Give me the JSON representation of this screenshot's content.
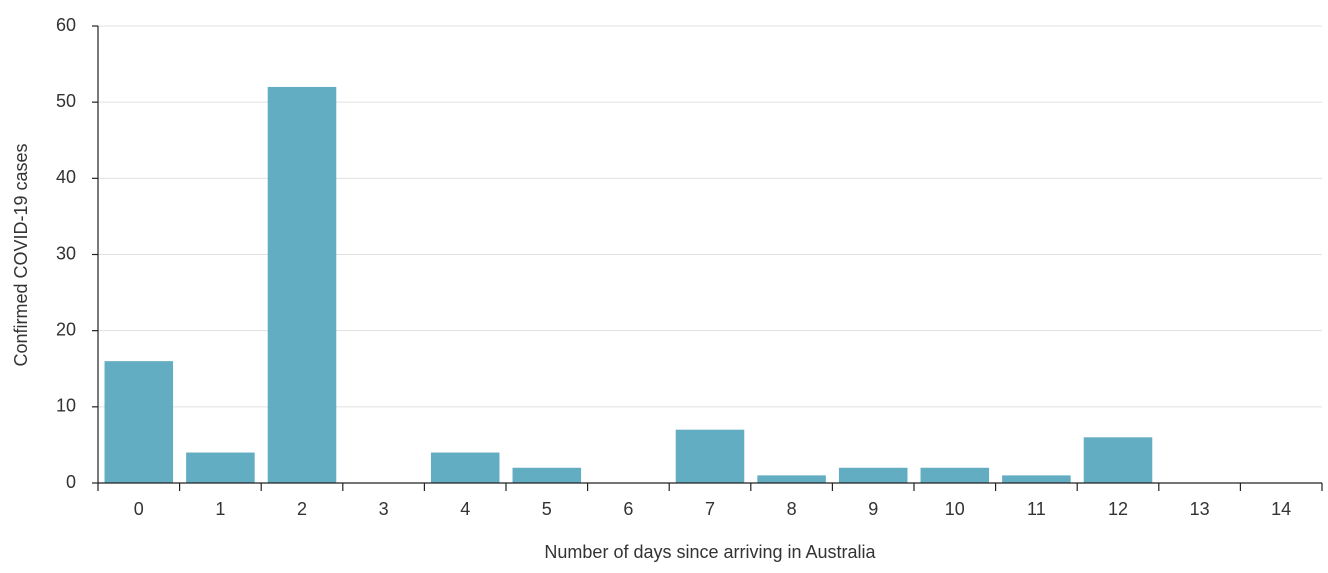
{
  "chart_data": {
    "type": "bar",
    "x_label": "Number of days since arriving in Australia",
    "y_label": "Confirmed COVID-19 cases",
    "categories": [
      "0",
      "1",
      "2",
      "3",
      "4",
      "5",
      "6",
      "7",
      "8",
      "9",
      "10",
      "11",
      "12",
      "13",
      "14"
    ],
    "values": [
      16,
      4,
      52,
      0,
      4,
      2,
      0,
      7,
      1,
      2,
      2,
      1,
      6,
      0,
      0
    ],
    "color": "#63adc2",
    "ylim": [
      0,
      60
    ],
    "yticks": [
      0,
      10,
      20,
      30,
      40,
      50,
      60
    ],
    "grid": true
  }
}
